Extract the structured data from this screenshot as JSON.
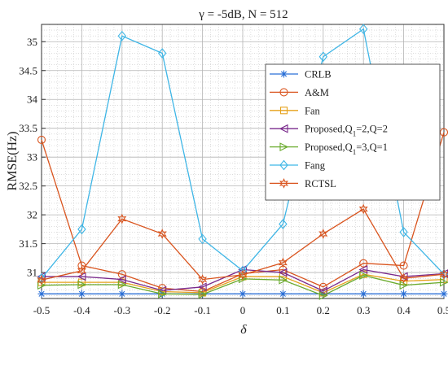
{
  "chart_data": {
    "type": "line",
    "title": "γ = -5dB, N = 512",
    "xlabel": "δ",
    "ylabel": "RMSE(Hz)",
    "x": [
      -0.5,
      -0.4,
      -0.3,
      -0.2,
      -0.1,
      0,
      0.1,
      0.2,
      0.3,
      0.4,
      0.5
    ],
    "x_tick_labels": [
      "-0.5",
      "-0.4",
      "-0.3",
      "-0.2",
      "-0.1",
      "0",
      "0.1",
      "0.2",
      "0.3",
      "0.4",
      "0.5"
    ],
    "xlim": [
      -0.5,
      0.5
    ],
    "ylim": [
      30.55,
      35.3
    ],
    "y_ticks": [
      31,
      31.5,
      32,
      32.5,
      33,
      33.5,
      34,
      34.5,
      35
    ],
    "y_tick_labels": [
      "31",
      "31.5",
      "32",
      "32.5",
      "33",
      "33.5",
      "34",
      "34.5",
      "35"
    ],
    "grid": true,
    "minor_grid": true,
    "legend_position": "top-right",
    "series": [
      {
        "name": "CRLB",
        "color": "#2a6fd6",
        "marker": "star",
        "values": [
          30.63,
          30.63,
          30.63,
          30.63,
          30.63,
          30.63,
          30.63,
          30.63,
          30.63,
          30.63,
          30.63
        ]
      },
      {
        "name": "A&M",
        "color": "#d9541e",
        "marker": "circle",
        "values": [
          33.3,
          31.12,
          30.97,
          30.73,
          30.67,
          30.98,
          31.05,
          30.75,
          31.16,
          31.12,
          33.43
        ]
      },
      {
        "name": "Fan",
        "color": "#e6a11a",
        "marker": "square",
        "values": [
          30.83,
          30.83,
          30.83,
          30.67,
          30.65,
          30.93,
          30.93,
          30.65,
          30.97,
          30.85,
          30.88
        ]
      },
      {
        "name": "Proposed,Q_1=2,Q=2",
        "color": "#7a2a8c",
        "marker": "triangle-left",
        "values": [
          30.93,
          30.93,
          30.88,
          30.69,
          30.75,
          31.05,
          31.0,
          30.68,
          31.05,
          30.93,
          30.98
        ]
      },
      {
        "name": "Proposed,Q_1=3,Q=1",
        "color": "#6aab2e",
        "marker": "triangle-right",
        "values": [
          30.78,
          30.79,
          30.79,
          30.63,
          30.62,
          30.89,
          30.87,
          30.6,
          30.95,
          30.78,
          30.83
        ]
      },
      {
        "name": "Fang",
        "color": "#3fb6e6",
        "marker": "diamond",
        "values": [
          30.9,
          31.75,
          35.1,
          34.8,
          31.58,
          31.03,
          31.84,
          34.74,
          35.22,
          31.7,
          30.97
        ]
      },
      {
        "name": "RCTSL",
        "color": "#d9541e",
        "marker": "hexagram",
        "values": [
          30.87,
          31.03,
          31.93,
          31.67,
          30.88,
          30.96,
          31.17,
          31.67,
          32.1,
          30.9,
          30.97
        ]
      }
    ]
  }
}
